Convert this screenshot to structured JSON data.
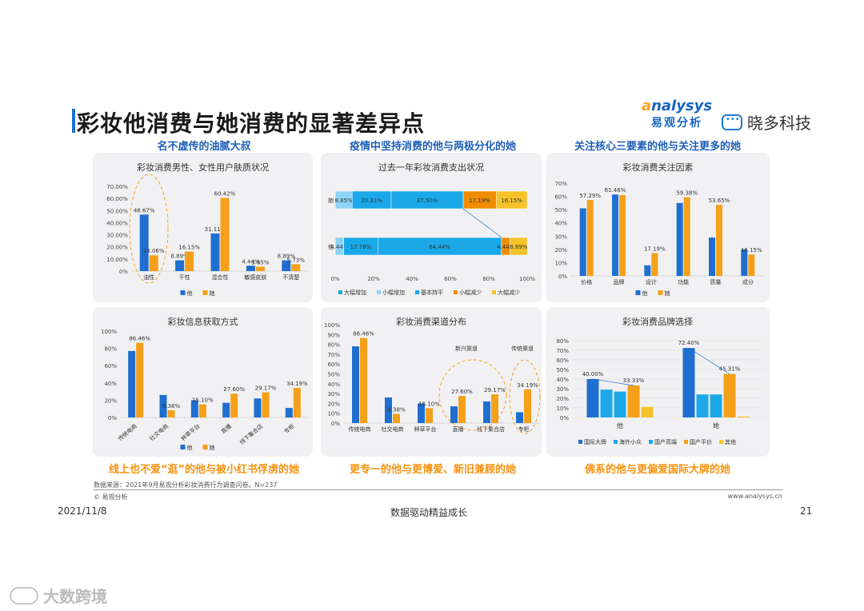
{
  "page": {
    "title": "彩妆他消费与她消费的显著差异点",
    "brand_en_a": "a",
    "brand_en_b": "nalysys",
    "brand_cn": "易观分析",
    "partner": "晓多科技",
    "source": "数据来源：2021年9月易观分析彩妆消费行为调查问卷。N=237",
    "copyright": "© 易观分析",
    "website": "www.analysys.cn",
    "date": "2021/11/8",
    "slogan": "数据驱动精益成长",
    "page_number": "21",
    "watermark": "大数跨境"
  },
  "sections": {
    "head_left": "名不虚传的油腻大叔",
    "head_mid": "疫情中坚持消费的他与两极分化的她",
    "head_right": "关注核心三要素的他与关注更多的她",
    "foot_left": "线上也不爱“逛”的他与被小红书俘虏的她",
    "foot_mid": "更专一的他与更博爱、新旧兼顾的她",
    "foot_right": "佛系的他与更偏爱国际大牌的她"
  },
  "colors": {
    "male": "#1f6fd1",
    "female": "#f5a01a",
    "light_blue": "#1ba8e8",
    "pale_blue": "#8fd3f4",
    "dark_orange": "#f08c00",
    "yellow": "#f6c229"
  },
  "chart_data": [
    {
      "id": "skin",
      "type": "bar",
      "title": "彩妆消费男性、女性用户肤质状况",
      "categories": [
        "油性",
        "干性",
        "混合性",
        "敏感皮肤",
        "不清楚"
      ],
      "series": [
        {
          "name": "他",
          "values": [
            46.67,
            8.89,
            31.11,
            4.44,
            8.89
          ]
        },
        {
          "name": "她",
          "values": [
            13.06,
            16.15,
            60.42,
            3.65,
            5.73
          ]
        }
      ],
      "labels": [
        [
          "46.67%",
          "8.89%",
          "31.11%",
          "4.44%",
          "8.89%"
        ],
        [
          "13.06%",
          "16.15%",
          "60.42%",
          "3.65%",
          "5.73%"
        ]
      ],
      "yticks": [
        "0%",
        "10.00%",
        "20.00%",
        "30.00%",
        "40.00%",
        "50.00%",
        "60.00%",
        "70.00%"
      ],
      "ylim": [
        0,
        70
      ],
      "legend": [
        "他",
        "她"
      ]
    },
    {
      "id": "spend",
      "type": "bar",
      "orientation": "horizontal-stacked",
      "title": "过去一年彩妆消费支出状况",
      "categories": [
        "她",
        "他"
      ],
      "series": [
        {
          "name": "大幅增加",
          "values": [
            8.85,
            4.44
          ]
        },
        {
          "name": "小幅增加",
          "values": [
            20.31,
            17.78
          ]
        },
        {
          "name": "基本持平",
          "values": [
            37.5,
            64.44
          ]
        },
        {
          "name": "小幅减少",
          "values": [
            17.19,
            4.44
          ]
        },
        {
          "name": "大幅减少",
          "values": [
            16.15,
            8.89
          ]
        }
      ],
      "labels": [
        [
          "8.85%",
          "20.31%",
          "37.50%",
          "17.19%",
          "16.15%"
        ],
        [
          "4.44%",
          "17.78%",
          "64.44%",
          "4.44%",
          "8.89%"
        ]
      ],
      "xticks": [
        "0%",
        "20%",
        "40%",
        "60%",
        "80%",
        "100%"
      ],
      "xlim": [
        0,
        100
      ],
      "legend": [
        "大幅增加",
        "小幅增加",
        "基本持平",
        "小幅减少",
        "大幅减少"
      ]
    },
    {
      "id": "focus",
      "type": "bar",
      "title": "彩妆消费关注因素",
      "categories": [
        "价格",
        "品牌",
        "设计",
        "功能",
        "质量",
        "成分"
      ],
      "series": [
        {
          "name": "他",
          "values": [
            51,
            61.46,
            8,
            55,
            29,
            20
          ]
        },
        {
          "name": "她",
          "values": [
            57.29,
            61,
            17.19,
            59.38,
            53.65,
            16.15
          ]
        }
      ],
      "labels": [
        [
          "",
          "61.46%",
          "",
          "",
          "",
          ""
        ],
        [
          "57.29%",
          "",
          "17.19%",
          "59.38%",
          "53.65%",
          "16.15%"
        ]
      ],
      "yticks": [
        "0%",
        "10%",
        "20%",
        "30%",
        "40%",
        "50%",
        "60%",
        "70%"
      ],
      "ylim": [
        0,
        70
      ],
      "legend": [
        "他",
        "她"
      ]
    },
    {
      "id": "info",
      "type": "bar",
      "title": "彩妆信息获取方式",
      "categories": [
        "传统电商",
        "社交电商",
        "种草平台",
        "直播",
        "线下集合店",
        "专柜"
      ],
      "series": [
        {
          "name": "他",
          "values": [
            77,
            26,
            20,
            17,
            22,
            11
          ]
        },
        {
          "name": "她",
          "values": [
            86.46,
            8.38,
            15.1,
            27.6,
            29.17,
            34.19
          ]
        }
      ],
      "labels": [
        [
          "",
          "",
          "",
          "",
          "",
          ""
        ],
        [
          "86.46%",
          "8.38%",
          "15.10%",
          "27.60%",
          "29.17%",
          "34.19%"
        ]
      ],
      "yticks": [
        "0%",
        "20%",
        "40%",
        "60%",
        "80%",
        "100%"
      ],
      "ylim": [
        0,
        100
      ],
      "legend": [
        "他",
        "她"
      ]
    },
    {
      "id": "channel",
      "type": "bar",
      "title": "彩妆消费渠道分布",
      "categories": [
        "传统电商",
        "社交电商",
        "种草平台",
        "直播",
        "线下集合店",
        "专柜"
      ],
      "series": [
        {
          "name": "他",
          "values": [
            78,
            26,
            20,
            17,
            22,
            11
          ]
        },
        {
          "name": "她",
          "values": [
            86.46,
            9.38,
            15.1,
            27.6,
            29.17,
            34.19
          ]
        }
      ],
      "labels": [
        [
          "",
          "",
          "",
          "",
          "",
          ""
        ],
        [
          "86.46%",
          "9.38%",
          "15.10%",
          "27.60%",
          "29.17%",
          "34.19%"
        ]
      ],
      "yticks": [
        "0%",
        "10%",
        "20%",
        "30%",
        "40%",
        "50%",
        "60%",
        "70%",
        "80%",
        "90%",
        "100%"
      ],
      "ylim": [
        0,
        100
      ],
      "annotations": [
        "新兴渠道",
        "传统渠道"
      ],
      "legend": []
    },
    {
      "id": "brand",
      "type": "bar",
      "title": "彩妆消费品牌选择",
      "categories": [
        "他",
        "她"
      ],
      "series": [
        {
          "name": "国际大牌",
          "values": [
            40.0,
            72.4
          ]
        },
        {
          "name": "海外小众",
          "values": [
            29,
            24
          ]
        },
        {
          "name": "国产高端",
          "values": [
            27,
            24
          ]
        },
        {
          "name": "国产平价",
          "values": [
            33.33,
            45.31
          ]
        },
        {
          "name": "其他",
          "values": [
            11,
            1
          ]
        }
      ],
      "labels": [
        [
          "40.00%",
          "",
          "",
          "33.33%",
          ""
        ],
        [
          "72.40%",
          "",
          "",
          "45.31%",
          ""
        ]
      ],
      "yticks": [
        "0%",
        "10%",
        "20%",
        "30%",
        "40%",
        "50%",
        "60%",
        "70%",
        "80%"
      ],
      "ylim": [
        0,
        80
      ],
      "legend": [
        "国际大牌",
        "海外小众",
        "国产高端",
        "国产平价",
        "其他"
      ]
    }
  ]
}
